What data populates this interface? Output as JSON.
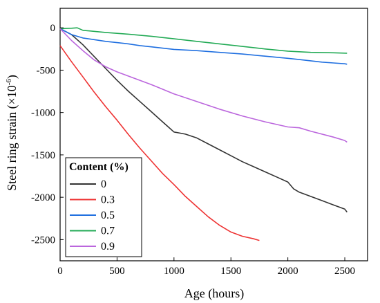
{
  "chart_data": {
    "type": "line",
    "xlabel": "Age (hours)",
    "ylabel": "Steel ring strain (×10",
    "ylabel_exp": "-6",
    "ylabel_close": ")",
    "xlim": [
      0,
      2700
    ],
    "ylim": [
      -2750,
      230
    ],
    "xticks": [
      0,
      500,
      1000,
      1500,
      2000,
      2500
    ],
    "yticks": [
      0,
      -500,
      -1000,
      -1500,
      -2000,
      -2500
    ],
    "grid": false,
    "legend": {
      "title": "Content (%)",
      "placement": "bottom-left"
    },
    "series": [
      {
        "name": "0",
        "color": "#333333",
        "x": [
          0,
          100,
          200,
          300,
          400,
          500,
          600,
          700,
          800,
          900,
          950,
          1000,
          1100,
          1200,
          1300,
          1400,
          1500,
          1600,
          1700,
          1800,
          1900,
          2000,
          2050,
          2100,
          2200,
          2300,
          2400,
          2500,
          2520
        ],
        "y": [
          -10,
          -80,
          -200,
          -340,
          -480,
          -620,
          -750,
          -870,
          -990,
          -1110,
          -1170,
          -1230,
          -1255,
          -1300,
          -1370,
          -1440,
          -1510,
          -1580,
          -1640,
          -1700,
          -1760,
          -1820,
          -1900,
          -1940,
          -1990,
          -2040,
          -2090,
          -2140,
          -2175
        ]
      },
      {
        "name": "0.3",
        "color": "#ee3333",
        "x": [
          0,
          100,
          200,
          300,
          400,
          500,
          600,
          700,
          800,
          900,
          1000,
          1100,
          1200,
          1300,
          1400,
          1500,
          1600,
          1700,
          1750
        ],
        "y": [
          -210,
          -400,
          -580,
          -760,
          -930,
          -1090,
          -1260,
          -1420,
          -1570,
          -1720,
          -1850,
          -1990,
          -2110,
          -2230,
          -2330,
          -2410,
          -2460,
          -2490,
          -2510
        ]
      },
      {
        "name": "0.5",
        "color": "#1f6fe0",
        "x": [
          0,
          100,
          200,
          300,
          400,
          500,
          600,
          700,
          800,
          900,
          1000,
          1200,
          1400,
          1600,
          1800,
          2000,
          2100,
          2200,
          2300,
          2400,
          2500,
          2520
        ],
        "y": [
          -10,
          -80,
          -120,
          -140,
          -160,
          -175,
          -190,
          -210,
          -225,
          -240,
          -255,
          -270,
          -290,
          -310,
          -335,
          -360,
          -375,
          -390,
          -405,
          -415,
          -425,
          -430
        ]
      },
      {
        "name": "0.7",
        "color": "#22aa55",
        "x": [
          0,
          100,
          150,
          200,
          400,
          600,
          800,
          1000,
          1200,
          1400,
          1600,
          1800,
          2000,
          2200,
          2400,
          2520
        ],
        "y": [
          -10,
          -5,
          0,
          -30,
          -55,
          -75,
          -100,
          -130,
          -160,
          -190,
          -220,
          -250,
          -275,
          -290,
          -295,
          -300
        ]
      },
      {
        "name": "0.9",
        "color": "#bb66dd",
        "x": [
          0,
          100,
          200,
          300,
          400,
          500,
          600,
          800,
          1000,
          1200,
          1400,
          1600,
          1800,
          2000,
          2100,
          2200,
          2400,
          2500,
          2520
        ],
        "y": [
          -10,
          -150,
          -270,
          -380,
          -460,
          -520,
          -570,
          -670,
          -780,
          -870,
          -960,
          -1040,
          -1110,
          -1170,
          -1180,
          -1220,
          -1290,
          -1330,
          -1350
        ]
      }
    ]
  }
}
